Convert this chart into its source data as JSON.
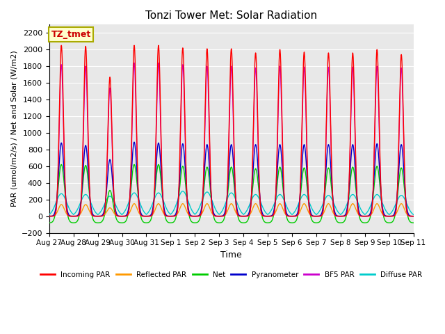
{
  "title": "Tonzi Tower Met: Solar Radiation",
  "xlabel": "Time",
  "ylabel": "PAR (umol/m2/s) / Net and Solar (W/m2)",
  "ylim": [
    -200,
    2300
  ],
  "yticks": [
    -200,
    0,
    200,
    400,
    600,
    800,
    1000,
    1200,
    1400,
    1600,
    1800,
    2000,
    2200
  ],
  "annotation_text": "TZ_tmet",
  "annotation_color": "#cc0000",
  "annotation_bg": "#ffffcc",
  "bg_color": "#e8e8e8",
  "series_colors": {
    "incoming_par": "#ff0000",
    "reflected_par": "#ff9900",
    "net": "#00cc00",
    "pyranometer": "#0000cc",
    "bf5_par": "#cc00cc",
    "diffuse_par": "#00cccc"
  },
  "legend_labels": [
    "Incoming PAR",
    "Reflected PAR",
    "Net",
    "Pyranometer",
    "BF5 PAR",
    "Diffuse PAR"
  ],
  "n_days": 15,
  "points_per_day": 288,
  "day_peaks": {
    "incoming_par": [
      2050,
      2040,
      1670,
      2050,
      2050,
      2020,
      2010,
      2010,
      1960,
      2000,
      1970,
      1960,
      1960,
      2000,
      1940
    ],
    "reflected_par": [
      140,
      140,
      100,
      150,
      150,
      150,
      150,
      150,
      150,
      150,
      150,
      150,
      150,
      150,
      150
    ],
    "net": [
      620,
      610,
      310,
      620,
      620,
      600,
      590,
      590,
      570,
      590,
      580,
      580,
      590,
      600,
      580
    ],
    "pyranometer": [
      880,
      850,
      680,
      890,
      880,
      870,
      860,
      860,
      860,
      860,
      860,
      860,
      860,
      870,
      860
    ],
    "bf5_par": [
      1820,
      1800,
      1540,
      1840,
      1840,
      1820,
      1800,
      1800,
      1780,
      1800,
      1790,
      1790,
      1790,
      1800,
      1780
    ],
    "diffuse_par": [
      270,
      260,
      240,
      280,
      280,
      300,
      290,
      280,
      260,
      260,
      260,
      250,
      260,
      260,
      250
    ]
  },
  "net_night_value": -80,
  "x_tick_labels": [
    "Aug 27",
    "Aug 28",
    "Aug 29",
    "Aug 30",
    "Aug 31",
    "Sep 1",
    "Sep 2",
    "Sep 3",
    "Sep 4",
    "Sep 5",
    "Sep 6",
    "Sep 7",
    "Sep 8",
    "Sep 9",
    "Sep 10",
    "Sep 11"
  ],
  "figsize": [
    6.4,
    4.8
  ],
  "dpi": 100
}
